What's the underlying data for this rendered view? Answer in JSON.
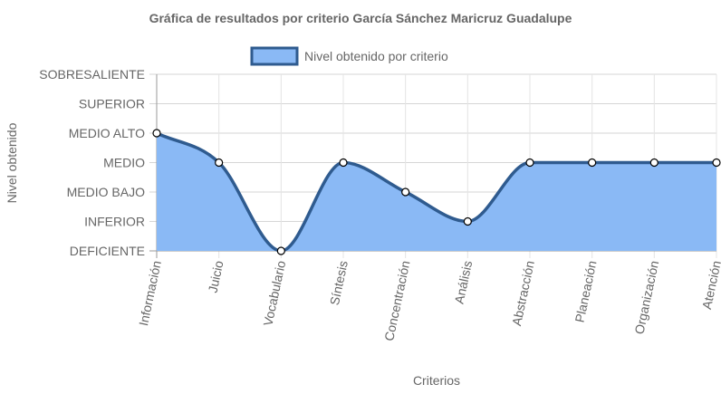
{
  "chart_data": {
    "type": "area",
    "title": "Gráfica de resultados por criterio García Sánchez Maricruz Guadalupe",
    "xlabel": "Criterios",
    "ylabel": "Nivel obtenido",
    "categories": [
      "Información",
      "Juicio",
      "Vocabulario",
      "Síntesis",
      "Concentración",
      "Análisis",
      "Abstracción",
      "Planeación",
      "Organización",
      "Atención"
    ],
    "y_levels": [
      "DEFICIENTE",
      "INFERIOR",
      "MEDIO BAJO",
      "MEDIO",
      "MEDIO ALTO",
      "SUPERIOR",
      "SOBRESALIENTE"
    ],
    "ylim": [
      0,
      6
    ],
    "series": [
      {
        "name": "Nivel obtenido por criterio",
        "values": [
          4,
          3,
          0,
          3,
          2,
          1,
          3,
          3,
          3,
          3
        ],
        "fill_color": "#8ab9f5",
        "line_color": "#2f5b8f"
      }
    ],
    "legend_position": "top-center",
    "grid": true
  }
}
